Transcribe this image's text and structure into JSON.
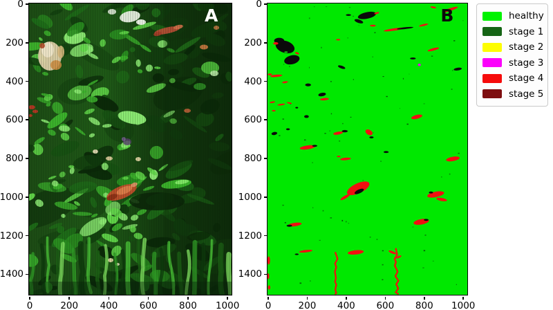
{
  "figure": {
    "background": "#ffffff"
  },
  "panels": [
    {
      "id": "A",
      "label": "A",
      "label_color": "#ffffff",
      "x_ticks": [
        0,
        200,
        400,
        600,
        800,
        1000
      ],
      "y_ticks": [
        0,
        200,
        400,
        600,
        800,
        1000,
        1200,
        1400
      ]
    },
    {
      "id": "B",
      "label": "B",
      "label_color": "#0a0a0a",
      "x_ticks": [
        0,
        200,
        400,
        600,
        800,
        1000
      ],
      "y_ticks": [
        0,
        200,
        400,
        600,
        800,
        1000,
        1200,
        1400
      ]
    }
  ],
  "legend": {
    "entries": [
      {
        "label": "healthy",
        "color": "#00f300"
      },
      {
        "label": "stage 1",
        "color": "#156415"
      },
      {
        "label": "stage 2",
        "color": "#fdfd00"
      },
      {
        "label": "stage 3",
        "color": "#fb00fb"
      },
      {
        "label": "stage 4",
        "color": "#f60b0b"
      },
      {
        "label": "stage 5",
        "color": "#7e0e10"
      }
    ]
  },
  "chart_data": {
    "type": "heatmap",
    "title": "",
    "legend_position": "upper right, outside axes",
    "panels": [
      {
        "id": "A",
        "content": "true-color aerial image of forest canopy (greens with white/cream highlights and small red-orange patches)",
        "x_axis": {
          "ticks": [
            0,
            200,
            400,
            600,
            800,
            1000
          ],
          "range": [
            0,
            1024
          ]
        },
        "y_axis": {
          "ticks": [
            0,
            200,
            400,
            600,
            800,
            1000,
            1200,
            1400
          ],
          "range": [
            0,
            1510
          ],
          "inverted": true
        }
      },
      {
        "id": "B",
        "content": "pixel classification map; dominant class healthy (lime green) with scattered dark and stage-4 red patches, one stage-3 magenta spot",
        "x_axis": {
          "ticks": [
            0,
            200,
            400,
            600,
            800,
            1000
          ],
          "range": [
            0,
            1024
          ]
        },
        "y_axis": {
          "ticks": [
            0,
            200,
            400,
            600,
            800,
            1000,
            1200,
            1400
          ],
          "range": [
            0,
            1510
          ],
          "inverted": true
        },
        "background_color": "#00e800",
        "classes": [
          "healthy",
          "stage 1",
          "stage 2",
          "stage 3",
          "stage 4",
          "stage 5"
        ],
        "patches": [
          {
            "x": 510,
            "y": 62,
            "w": 95,
            "h": 34,
            "r": -12,
            "c": "#0a0a0a"
          },
          {
            "x": 468,
            "y": 92,
            "w": 46,
            "h": 18,
            "r": 18,
            "c": "#0a0a0a"
          },
          {
            "x": 415,
            "y": 60,
            "w": 26,
            "h": 9,
            "r": 0,
            "c": "#0a0a0a"
          },
          {
            "x": 560,
            "y": 50,
            "w": 26,
            "h": 9,
            "r": -15,
            "c": "#f01010"
          },
          {
            "x": 935,
            "y": 32,
            "w": 85,
            "h": 14,
            "r": -18,
            "c": "#f01010"
          },
          {
            "x": 850,
            "y": 20,
            "w": 30,
            "h": 9,
            "r": 10,
            "c": "#f01010"
          },
          {
            "x": 540,
            "y": 115,
            "w": 30,
            "h": 9,
            "r": 0,
            "c": "#f01010"
          },
          {
            "x": 650,
            "y": 135,
            "w": 110,
            "h": 12,
            "r": -8,
            "c": "#f01010"
          },
          {
            "x": 705,
            "y": 128,
            "w": 85,
            "h": 9,
            "r": -6,
            "c": "#0a0a0a"
          },
          {
            "x": 800,
            "y": 112,
            "w": 48,
            "h": 10,
            "r": -14,
            "c": "#f01010"
          },
          {
            "x": 362,
            "y": 188,
            "w": 22,
            "h": 8,
            "r": 0,
            "c": "#f01010"
          },
          {
            "x": 850,
            "y": 238,
            "w": 60,
            "h": 13,
            "r": -15,
            "c": "#f01010"
          },
          {
            "x": 90,
            "y": 225,
            "w": 100,
            "h": 62,
            "r": 18,
            "c": "#0a0a0a"
          },
          {
            "x": 125,
            "y": 292,
            "w": 80,
            "h": 46,
            "r": -14,
            "c": "#0a0a0a"
          },
          {
            "x": 60,
            "y": 193,
            "w": 52,
            "h": 30,
            "r": 0,
            "c": "#0a0a0a"
          },
          {
            "x": 42,
            "y": 207,
            "w": 26,
            "h": 13,
            "r": 0,
            "c": "#f01010"
          },
          {
            "x": 152,
            "y": 258,
            "w": 22,
            "h": 10,
            "r": 20,
            "c": "#f01010"
          },
          {
            "x": 95,
            "y": 252,
            "w": 18,
            "h": 8,
            "r": 0,
            "c": "#19c819"
          },
          {
            "x": 380,
            "y": 330,
            "w": 40,
            "h": 14,
            "r": 20,
            "c": "#0a0a0a"
          },
          {
            "x": 745,
            "y": 285,
            "w": 30,
            "h": 10,
            "r": 0,
            "c": "#0a0a0a"
          },
          {
            "x": 778,
            "y": 318,
            "w": 15,
            "h": 13,
            "r": 0,
            "c": "#ee00ee"
          },
          {
            "x": 975,
            "y": 340,
            "w": 42,
            "h": 14,
            "r": -8,
            "c": "#0a0a0a"
          },
          {
            "x": 45,
            "y": 375,
            "w": 60,
            "h": 12,
            "r": -5,
            "c": "#f01010"
          },
          {
            "x": 12,
            "y": 368,
            "w": 22,
            "h": 9,
            "r": 0,
            "c": "#f01010"
          },
          {
            "x": 90,
            "y": 408,
            "w": 30,
            "h": 9,
            "r": -8,
            "c": "#f01010"
          },
          {
            "x": 208,
            "y": 422,
            "w": 30,
            "h": 15,
            "r": 0,
            "c": "#0a0a0a"
          },
          {
            "x": 280,
            "y": 472,
            "w": 40,
            "h": 18,
            "r": -10,
            "c": "#0a0a0a"
          },
          {
            "x": 292,
            "y": 496,
            "w": 45,
            "h": 12,
            "r": -5,
            "c": "#f01010"
          },
          {
            "x": 25,
            "y": 512,
            "w": 28,
            "h": 8,
            "r": -10,
            "c": "#f01010"
          },
          {
            "x": 70,
            "y": 524,
            "w": 40,
            "h": 8,
            "r": -8,
            "c": "#f01010"
          },
          {
            "x": 112,
            "y": 516,
            "w": 26,
            "h": 7,
            "r": 12,
            "c": "#f01010"
          },
          {
            "x": 32,
            "y": 556,
            "w": 20,
            "h": 8,
            "r": 0,
            "c": "#f01010"
          },
          {
            "x": 150,
            "y": 540,
            "w": 14,
            "h": 8,
            "r": 0,
            "c": "#0a0a0a"
          },
          {
            "x": 200,
            "y": 586,
            "w": 24,
            "h": 14,
            "r": 0,
            "c": "#0a0a0a"
          },
          {
            "x": 765,
            "y": 588,
            "w": 58,
            "h": 20,
            "r": -14,
            "c": "#f01010"
          },
          {
            "x": 105,
            "y": 652,
            "w": 20,
            "h": 10,
            "r": 0,
            "c": "#0a0a0a"
          },
          {
            "x": 35,
            "y": 674,
            "w": 30,
            "h": 16,
            "r": -10,
            "c": "#0a0a0a"
          },
          {
            "x": 362,
            "y": 672,
            "w": 50,
            "h": 15,
            "r": -10,
            "c": "#f01010"
          },
          {
            "x": 396,
            "y": 662,
            "w": 30,
            "h": 12,
            "r": 0,
            "c": "#0a0a0a"
          },
          {
            "x": 520,
            "y": 668,
            "w": 40,
            "h": 26,
            "r": 30,
            "c": "#f01010"
          },
          {
            "x": 533,
            "y": 694,
            "w": 22,
            "h": 10,
            "r": 0,
            "c": "#0a0a0a"
          },
          {
            "x": 205,
            "y": 746,
            "w": 80,
            "h": 20,
            "r": -8,
            "c": "#f01010"
          },
          {
            "x": 242,
            "y": 738,
            "w": 26,
            "h": 10,
            "r": 0,
            "c": "#0a0a0a"
          },
          {
            "x": 608,
            "y": 770,
            "w": 26,
            "h": 10,
            "r": 0,
            "c": "#0a0a0a"
          },
          {
            "x": 400,
            "y": 806,
            "w": 55,
            "h": 13,
            "r": -5,
            "c": "#f01010"
          },
          {
            "x": 365,
            "y": 793,
            "w": 20,
            "h": 8,
            "r": 0,
            "c": "#f01010"
          },
          {
            "x": 950,
            "y": 806,
            "w": 70,
            "h": 22,
            "r": -10,
            "c": "#f01010"
          },
          {
            "x": 465,
            "y": 958,
            "w": 125,
            "h": 52,
            "r": -25,
            "c": "#f01010"
          },
          {
            "x": 470,
            "y": 974,
            "w": 52,
            "h": 20,
            "r": -25,
            "c": "#0a0a0a"
          },
          {
            "x": 398,
            "y": 1004,
            "w": 55,
            "h": 15,
            "r": -30,
            "c": "#f01010"
          },
          {
            "x": 862,
            "y": 990,
            "w": 88,
            "h": 28,
            "r": -12,
            "c": "#f01010"
          },
          {
            "x": 838,
            "y": 980,
            "w": 22,
            "h": 10,
            "r": 0,
            "c": "#0a0a0a"
          },
          {
            "x": 893,
            "y": 1016,
            "w": 55,
            "h": 16,
            "r": 10,
            "c": "#f01010"
          },
          {
            "x": 140,
            "y": 1146,
            "w": 70,
            "h": 18,
            "r": -8,
            "c": "#f01010"
          },
          {
            "x": 112,
            "y": 1152,
            "w": 28,
            "h": 11,
            "r": 0,
            "c": "#0a0a0a"
          },
          {
            "x": 788,
            "y": 1132,
            "w": 80,
            "h": 28,
            "r": -10,
            "c": "#f01010"
          },
          {
            "x": 813,
            "y": 1122,
            "w": 24,
            "h": 10,
            "r": 0,
            "c": "#0a0a0a"
          },
          {
            "x": 196,
            "y": 1284,
            "w": 68,
            "h": 13,
            "r": -6,
            "c": "#f01010"
          },
          {
            "x": 150,
            "y": 1300,
            "w": 20,
            "h": 8,
            "r": 0,
            "c": "#0a0a0a"
          },
          {
            "x": 452,
            "y": 1290,
            "w": 82,
            "h": 22,
            "r": -6,
            "c": "#f01010"
          },
          {
            "x": 640,
            "y": 1290,
            "w": 42,
            "h": 12,
            "r": 22,
            "c": "#f01010"
          },
          {
            "x": 673,
            "y": 1314,
            "w": 30,
            "h": 10,
            "r": -25,
            "c": "#f01010"
          },
          {
            "x": 6,
            "y": 1332,
            "w": 14,
            "h": 42,
            "r": 0,
            "c": "#f01010"
          },
          {
            "x": 4,
            "y": 1414,
            "w": 10,
            "h": 30,
            "r": 0,
            "c": "#f01010"
          },
          {
            "x": 8,
            "y": 1472,
            "w": 12,
            "h": 22,
            "r": 0,
            "c": "#f01010"
          }
        ],
        "squiggles": [
          {
            "x": 348,
            "y0": 1292,
            "y1": 1505,
            "amp": 10,
            "color": "#ef1010"
          },
          {
            "x": 658,
            "y0": 1272,
            "y1": 1505,
            "amp": 12,
            "color": "#ef1010"
          }
        ]
      }
    ]
  }
}
